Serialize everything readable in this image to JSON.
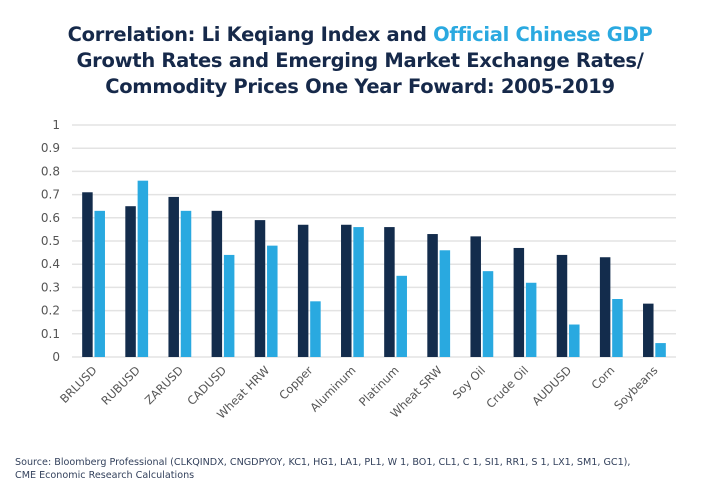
{
  "title": {
    "part1": "Correlation: Li Keqiang Index and ",
    "part2_highlight": "Official Chinese GDP",
    "line2": "Growth Rates and Emerging Market Exchange Rates/",
    "line3": "Commodity Prices One Year Foward: 2005-2019"
  },
  "colors": {
    "li_keqiang": "#132c4c",
    "official_gdp": "#29a9e0",
    "title": "#16294a",
    "grid": "#e3e3e3"
  },
  "source": {
    "line1": "Source: Bloomberg Professional (CLKQINDX, CNGDPYOY, KC1, HG1, LA1, PL1, W 1, BO1, CL1, C 1, SI1, RR1, S 1, LX1, SM1, GC1),",
    "line2": "CME Economic Research Calculations"
  },
  "chart_data": {
    "type": "bar",
    "title": "Correlation: Li Keqiang Index and Official Chinese GDP Growth Rates and Emerging Market Exchange Rates/Commodity Prices One Year Foward: 2005-2019",
    "xlabel": "",
    "ylabel": "",
    "ylim": [
      0,
      1
    ],
    "yticks": [
      "0",
      "0.1",
      "0.2",
      "0.3",
      "0.4",
      "0.5",
      "0.6",
      "0.7",
      "0.8",
      "0.9",
      "1"
    ],
    "grid": true,
    "legend": "title-colored",
    "categories": [
      "BRLUSD",
      "RUBUSD",
      "ZARUSD",
      "CADUSD",
      "Wheat HRW",
      "Copper",
      "Aluminum",
      "Platinum",
      "Wheat SRW",
      "Soy Oil",
      "Crude Oil",
      "AUDUSD",
      "Corn",
      "Soybeans"
    ],
    "series": [
      {
        "name": "Li Keqiang Index",
        "color": "#132c4c",
        "values": [
          0.71,
          0.65,
          0.69,
          0.63,
          0.59,
          0.57,
          0.57,
          0.56,
          0.53,
          0.52,
          0.47,
          0.44,
          0.43,
          0.23
        ]
      },
      {
        "name": "Official Chinese GDP",
        "color": "#29a9e0",
        "values": [
          0.63,
          0.76,
          0.63,
          0.44,
          0.48,
          0.24,
          0.56,
          0.35,
          0.46,
          0.37,
          0.32,
          0.14,
          0.25,
          0.06
        ]
      }
    ]
  }
}
